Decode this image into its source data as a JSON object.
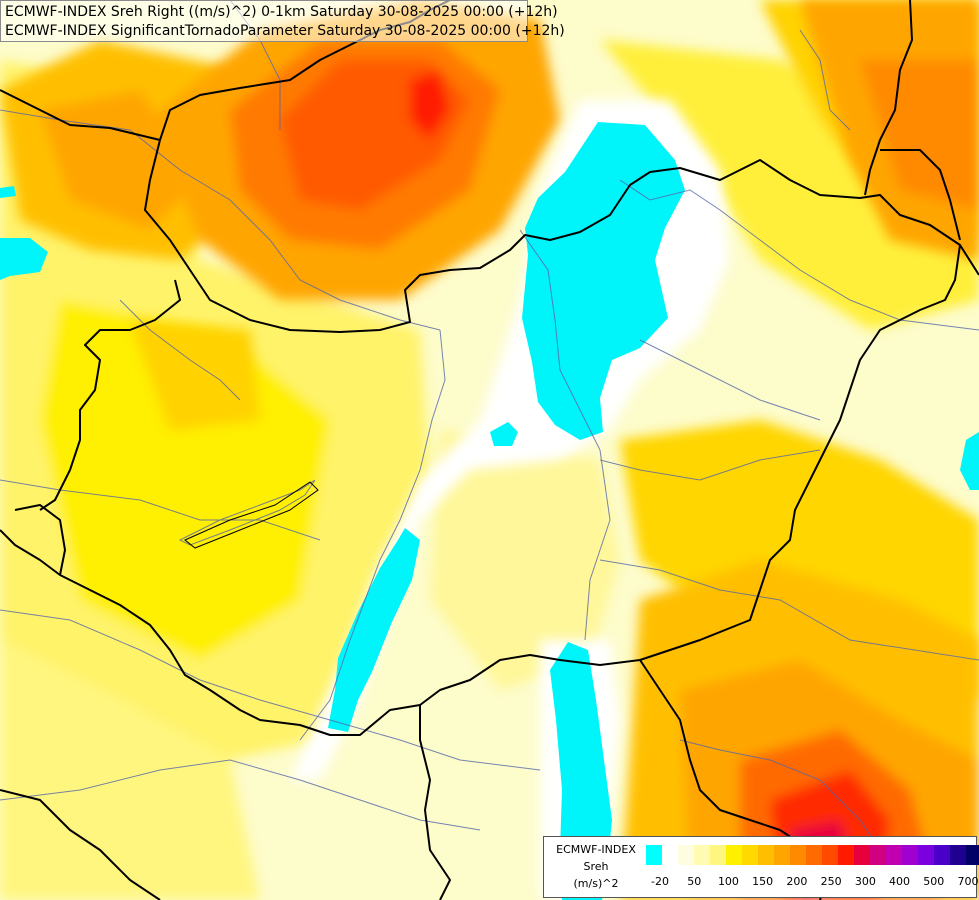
{
  "header": {
    "line1": "ECMWF-INDEX Sreh Right ((m/s)^2) 0-1km Saturday 30-08-2025 00:00 (+12h)",
    "line2": "ECMWF-INDEX SignificantTornadoParameter Saturday 30-08-2025 00:00 (+12h)"
  },
  "legend": {
    "title_lines": [
      "ECMWF-INDEX",
      "Sreh",
      "(m/s)^2"
    ],
    "colors": [
      "#00ffff",
      "#ffffff",
      "#fffde0",
      "#fffbb0",
      "#fff680",
      "#fff000",
      "#ffd900",
      "#ffbf00",
      "#ffa500",
      "#ff8a00",
      "#ff6b00",
      "#ff4a00",
      "#ff1a00",
      "#e8003c",
      "#d10080",
      "#c000b0",
      "#a000d0",
      "#7a00e0",
      "#4a00c8",
      "#1f0090",
      "#000066"
    ],
    "tick_labels": [
      "-20",
      "50",
      "100",
      "150",
      "200",
      "250",
      "300",
      "400",
      "500",
      "700"
    ]
  }
}
